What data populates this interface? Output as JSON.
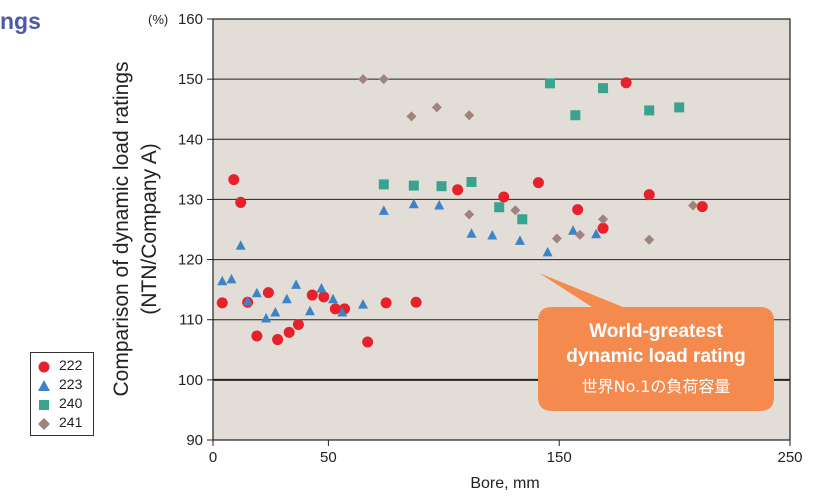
{
  "cut_title": "ngs",
  "legend": [
    {
      "label": "222",
      "color": "#e8202a",
      "marker": "circle"
    },
    {
      "label": "223",
      "color": "#3d84c6",
      "marker": "triangle"
    },
    {
      "label": "240",
      "color": "#3aa38f",
      "marker": "square"
    },
    {
      "label": "241",
      "color": "#a0837b",
      "marker": "diamond"
    }
  ],
  "callout": {
    "line1": "World-greatest",
    "line2": "dynamic load rating",
    "line3": "世界No.1の負荷容量",
    "color": "#f58a4e"
  },
  "chart_data": {
    "type": "scatter",
    "xlabel": "Bore, mm",
    "ylabel_line1": "Comparison of dynamic load ratings",
    "ylabel_line2": "(NTN/Company A)",
    "y_unit": "(%)",
    "xlim": [
      0,
      250
    ],
    "ylim": [
      90,
      160
    ],
    "x_ticks": [
      "0",
      "50",
      "150",
      "250"
    ],
    "y_ticks": [
      "90",
      "100",
      "110",
      "120",
      "130",
      "140",
      "150",
      "160"
    ],
    "plot_background": "#e3ddd8",
    "series": [
      {
        "name": "222",
        "points": [
          [
            4,
            112.8
          ],
          [
            9,
            133.3
          ],
          [
            12,
            129.5
          ],
          [
            15,
            112.9
          ],
          [
            19,
            107.3
          ],
          [
            24,
            114.5
          ],
          [
            28,
            106.7
          ],
          [
            33,
            107.9
          ],
          [
            37,
            109.2
          ],
          [
            43,
            114.1
          ],
          [
            48,
            113.8
          ],
          [
            53,
            111.8
          ],
          [
            57,
            111.8
          ],
          [
            67,
            106.3
          ],
          [
            75,
            112.8
          ],
          [
            88,
            112.9
          ],
          [
            106,
            131.6
          ],
          [
            126,
            130.4
          ],
          [
            141,
            132.8
          ],
          [
            158,
            128.3
          ],
          [
            169,
            125.2
          ],
          [
            179,
            149.4
          ],
          [
            189,
            130.8
          ],
          [
            212,
            128.8
          ]
        ]
      },
      {
        "name": "223",
        "points": [
          [
            4,
            116.4
          ],
          [
            8,
            116.7
          ],
          [
            12,
            122.3
          ],
          [
            15,
            113.0
          ],
          [
            19,
            114.4
          ],
          [
            23,
            110.2
          ],
          [
            27,
            111.2
          ],
          [
            32,
            113.4
          ],
          [
            36,
            115.8
          ],
          [
            42,
            111.4
          ],
          [
            47,
            115.2
          ],
          [
            52,
            113.4
          ],
          [
            56,
            111.2
          ],
          [
            65,
            112.5
          ],
          [
            74,
            128.1
          ],
          [
            87,
            129.2
          ],
          [
            98,
            129.0
          ],
          [
            112,
            124.3
          ],
          [
            121,
            124.0
          ],
          [
            133,
            123.1
          ],
          [
            145,
            121.2
          ],
          [
            156,
            124.8
          ],
          [
            166,
            124.2
          ]
        ]
      },
      {
        "name": "240",
        "points": [
          [
            74,
            132.5
          ],
          [
            87,
            132.3
          ],
          [
            99,
            132.2
          ],
          [
            112,
            132.9
          ],
          [
            124,
            128.7
          ],
          [
            134,
            126.7
          ],
          [
            146,
            149.3
          ],
          [
            157,
            144.0
          ],
          [
            169,
            148.5
          ],
          [
            189,
            144.8
          ],
          [
            202,
            145.3
          ]
        ]
      },
      {
        "name": "241",
        "points": [
          [
            65,
            150.0
          ],
          [
            74,
            150.0
          ],
          [
            86,
            143.8
          ],
          [
            97,
            145.3
          ],
          [
            111,
            144.0
          ],
          [
            111,
            127.5
          ],
          [
            131,
            128.2
          ],
          [
            149,
            123.5
          ],
          [
            159,
            124.1
          ],
          [
            169,
            126.7
          ],
          [
            189,
            123.3
          ],
          [
            208,
            129.0
          ]
        ]
      }
    ]
  }
}
